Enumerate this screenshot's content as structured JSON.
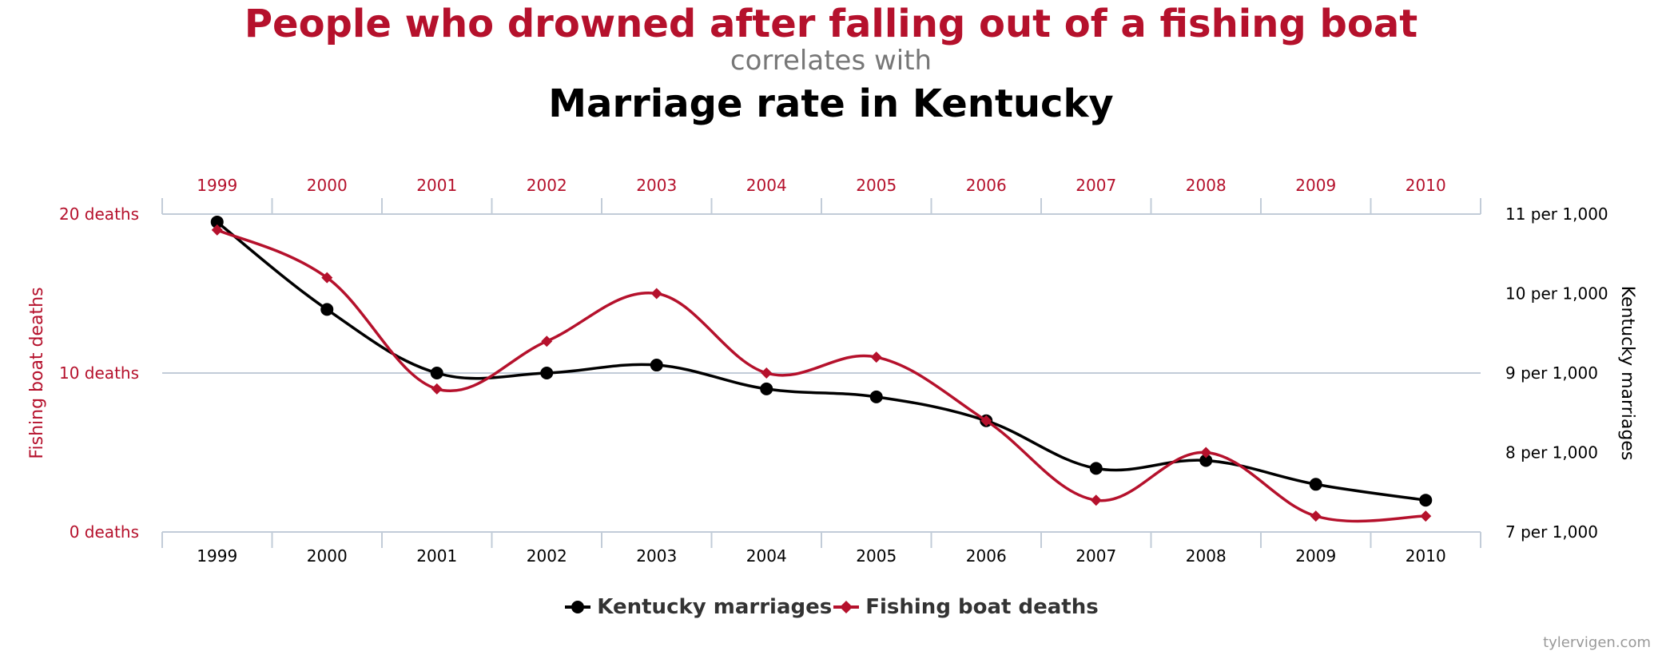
{
  "chart_data": {
    "type": "line",
    "title_top": "People who drowned after falling out of a fishing boat",
    "connector": "correlates with",
    "title_bottom": "Marriage rate in Kentucky",
    "categories": [
      "1999",
      "2000",
      "2001",
      "2002",
      "2003",
      "2004",
      "2005",
      "2006",
      "2007",
      "2008",
      "2009",
      "2010"
    ],
    "left_axis": {
      "label": "Fishing boat deaths",
      "range": [
        0,
        20
      ],
      "ticks": [
        {
          "value": 0,
          "label": "0 deaths"
        },
        {
          "value": 10,
          "label": "10 deaths"
        },
        {
          "value": 20,
          "label": "20 deaths"
        }
      ]
    },
    "right_axis": {
      "label": "Kentucky marriages",
      "range": [
        7,
        11
      ],
      "ticks": [
        {
          "value": 7,
          "label": "7 per 1,000"
        },
        {
          "value": 8,
          "label": "8 per 1,000"
        },
        {
          "value": 9,
          "label": "9 per 1,000"
        },
        {
          "value": 10,
          "label": "10 per 1,000"
        },
        {
          "value": 11,
          "label": "11 per 1,000"
        }
      ]
    },
    "series": [
      {
        "name": "Kentucky marriages",
        "axis": "right",
        "color": "#000000",
        "marker": "circle",
        "values": [
          10.9,
          9.8,
          9.0,
          9.0,
          9.1,
          8.8,
          8.7,
          8.4,
          7.8,
          7.9,
          7.6,
          7.4
        ]
      },
      {
        "name": "Fishing boat deaths",
        "axis": "left",
        "color": "#b5112c",
        "marker": "diamond",
        "values": [
          19,
          16,
          9,
          12,
          15,
          10,
          11,
          7,
          2,
          5,
          1,
          1
        ]
      }
    ],
    "grid": "horizontal at 0, 10, 20 deaths",
    "legend_position": "bottom-center"
  },
  "colors": {
    "accent": "#b5112c",
    "primary": "#000000",
    "axis_line": "#c2ccd8"
  },
  "credit": "tylervigen.com"
}
